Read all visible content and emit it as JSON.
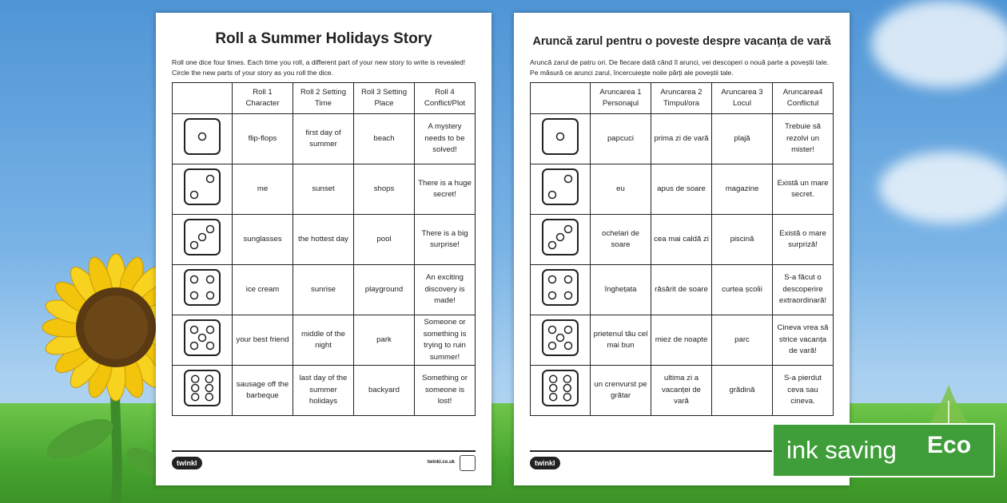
{
  "english": {
    "title": "Roll a Summer Holidays Story",
    "intro": "Roll one dice four times. Each time you roll, a different part of your new story to write is revealed! Circle the new parts of your story as you roll the dice.",
    "headers": [
      "",
      "Roll 1 Character",
      "Roll 2 Setting Time",
      "Roll 3 Setting Place",
      "Roll 4 Conflict/Plot"
    ],
    "rows": [
      {
        "dice": 1,
        "cells": [
          "flip-flops",
          "first day of summer",
          "beach",
          "A mystery needs to be solved!"
        ]
      },
      {
        "dice": 2,
        "cells": [
          "me",
          "sunset",
          "shops",
          "There is a huge secret!"
        ]
      },
      {
        "dice": 3,
        "cells": [
          "sunglasses",
          "the hottest day",
          "pool",
          "There is a big surprise!"
        ]
      },
      {
        "dice": 4,
        "cells": [
          "ice cream",
          "sunrise",
          "playground",
          "An exciting discovery is made!"
        ]
      },
      {
        "dice": 5,
        "cells": [
          "your best friend",
          "middle of the night",
          "park",
          "Someone or something is trying to ruin summer!"
        ]
      },
      {
        "dice": 6,
        "cells": [
          "sausage off the barbeque",
          "last day of the summer holidays",
          "backyard",
          "Something or someone is lost!"
        ]
      }
    ],
    "logo": "twinkl",
    "url": "twinkl.co.uk"
  },
  "romanian": {
    "title": "Aruncă zarul pentru o poveste despre vacanța de vară",
    "intro": "Aruncă zarul de patru ori. De fiecare dată când îl arunci,  vei descoperi o nouă parte a poveștii tale. Pe măsură ce arunci zarul, încercuiește noile părți ale poveștii tale.",
    "headers": [
      "",
      "Aruncarea 1 Personajul",
      "Aruncarea 2 Timpul/ora",
      "Aruncarea 3 Locul",
      "Aruncarea4 Conflictul"
    ],
    "rows": [
      {
        "dice": 1,
        "cells": [
          "papcuci",
          "prima zi de vară",
          "plajă",
          "Trebuie să rezolvi un mister!"
        ]
      },
      {
        "dice": 2,
        "cells": [
          "eu",
          "apus de soare",
          "magazine",
          "Există un mare secret."
        ]
      },
      {
        "dice": 3,
        "cells": [
          "ochelari de soare",
          "cea mai caldă zi",
          "piscină",
          "Există o mare surpriză!"
        ]
      },
      {
        "dice": 4,
        "cells": [
          "înghețata",
          "răsărit de soare",
          "curtea școlii",
          "S-a făcut o descoperire extraordinară!"
        ]
      },
      {
        "dice": 5,
        "cells": [
          "prietenul tău cel mai bun",
          "miez de noapte",
          "parc",
          "Cineva vrea să strice vacanța de vară!"
        ]
      },
      {
        "dice": 6,
        "cells": [
          "un crenvurst pe grătar",
          "ultima zi a vacanței de vară",
          "grădină",
          "S-a pierdut ceva sau cineva."
        ]
      }
    ],
    "logo": "twinkl"
  },
  "badge": {
    "text": "ink saving",
    "eco": "Eco",
    "color": "#3f9e3a"
  }
}
